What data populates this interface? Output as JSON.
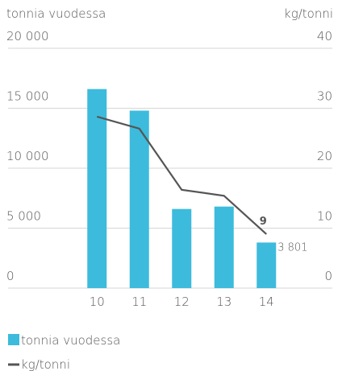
{
  "chart_data": {
    "type": "bar_line",
    "y_label": "tonnia vuodessa",
    "y2_label": "kg/tonni",
    "categories": [
      "10",
      "11",
      "12",
      "13",
      "14"
    ],
    "series": [
      {
        "name": "tonnia vuodessa",
        "type": "bar",
        "color": "#3dbbdc",
        "values": [
          16600,
          14800,
          6600,
          6800,
          3801
        ],
        "value_labels": [
          null,
          null,
          null,
          null,
          "3 801"
        ]
      },
      {
        "name": "kg/tonni",
        "type": "line",
        "axis": "y2",
        "color": "#555555",
        "values": [
          28.6,
          26.6,
          16.4,
          15.4,
          9
        ],
        "value_labels": [
          null,
          null,
          null,
          null,
          "9"
        ]
      }
    ],
    "ylim": [
      0,
      20000
    ],
    "yticks": [
      {
        "value": 0,
        "label": "0"
      },
      {
        "value": 5000,
        "label": "5 000"
      },
      {
        "value": 10000,
        "label": "10 000"
      },
      {
        "value": 15000,
        "label": "15 000"
      },
      {
        "value": 20000,
        "label": "20 000"
      }
    ],
    "y2lim": [
      0,
      40
    ],
    "y2ticks": [
      0,
      10,
      20,
      30,
      40
    ],
    "grid": true
  }
}
